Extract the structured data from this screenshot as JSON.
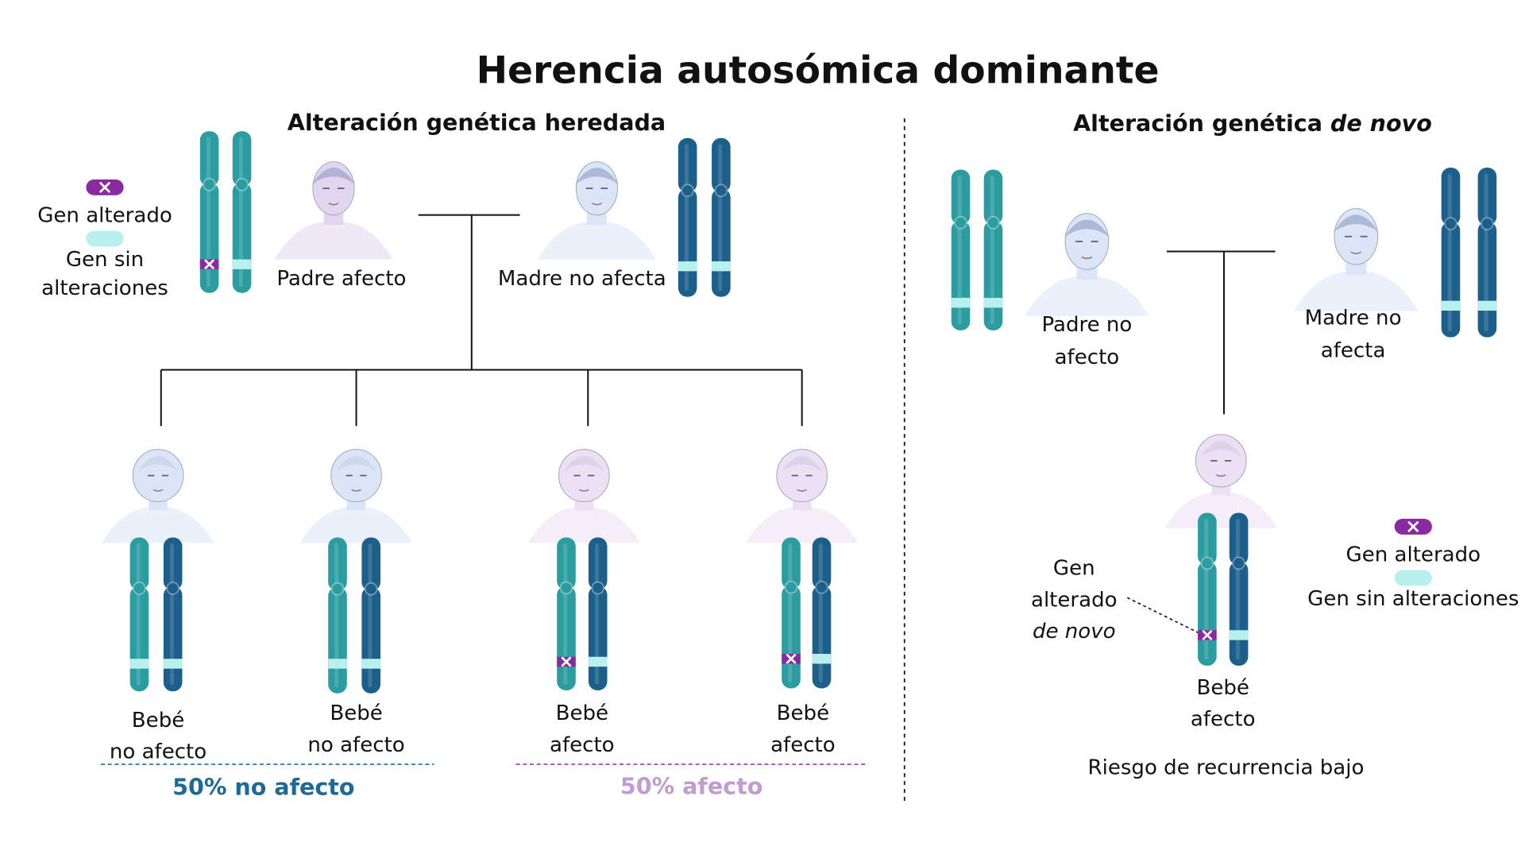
{
  "title": "Herencia autosómica dominante",
  "inherited": {
    "heading": "Alteración genética heredada",
    "legend": {
      "altered": "Gen alterado",
      "normal": [
        "Gen sin",
        "alteraciones"
      ]
    },
    "father": "Padre  afecto",
    "mother": "Madre no afecta",
    "children": [
      [
        "Bebé",
        "no afecto"
      ],
      [
        "Bebé",
        "no afecto"
      ],
      [
        "Bebé",
        "afecto"
      ],
      [
        "Bebé",
        "afecto"
      ]
    ],
    "unaffected_share": "50% no afecto",
    "affected_share": "50% afecto"
  },
  "de_novo": {
    "heading": [
      "Alteración genética ",
      "de novo"
    ],
    "father": [
      "Padre  no",
      "afecto"
    ],
    "mother": [
      "Madre no",
      "afecta"
    ],
    "child": [
      "Bebé",
      "afecto"
    ],
    "callout": [
      "Gen",
      "alterado",
      "de novo"
    ],
    "legend": {
      "altered": "Gen alterado",
      "normal": "Gen sin alteraciones"
    },
    "note": "Riesgo de recurrencia bajo"
  }
}
